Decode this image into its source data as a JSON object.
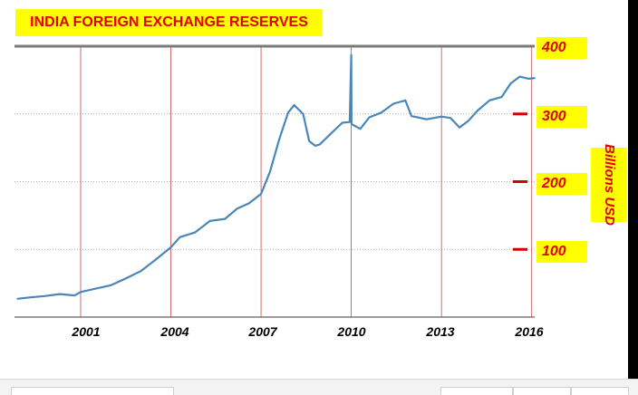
{
  "chart_data": {
    "type": "line",
    "title": "INDIA FOREIGN EXCHANGE RESERVES",
    "ylabel": "Billions USD",
    "yaxis_side": "right",
    "ylim": [
      0,
      400
    ],
    "y_ticks": [
      {
        "label": "400",
        "value": 400
      },
      {
        "label": "300",
        "value": 300
      },
      {
        "label": "200",
        "value": 200
      },
      {
        "label": "100",
        "value": 100
      }
    ],
    "xlim": [
      1998.8,
      2016.1
    ],
    "x_ticks": [
      {
        "label": "2001",
        "value": 2001
      },
      {
        "label": "2004",
        "value": 2004
      },
      {
        "label": "2007",
        "value": 2007
      },
      {
        "label": "2010",
        "value": 2010
      },
      {
        "label": "2013",
        "value": 2013
      },
      {
        "label": "2016",
        "value": 2016
      }
    ],
    "grid": true,
    "series": [
      {
        "color": "#4a86b8",
        "x": [
          1998.9,
          1999.3,
          1999.8,
          2000.3,
          2000.8,
          2001.0,
          2001.5,
          2002.0,
          2002.5,
          2003.0,
          2003.5,
          2004.0,
          2004.3,
          2004.8,
          2005.3,
          2005.8,
          2006.2,
          2006.6,
          2007.0,
          2007.3,
          2007.6,
          2007.9,
          2008.1,
          2008.4,
          2008.6,
          2008.8,
          2008.95,
          2009.3,
          2009.7,
          2009.95,
          2010.0,
          2010.01,
          2010.3,
          2010.6,
          2011.0,
          2011.4,
          2011.8,
          2012.0,
          2012.5,
          2013.0,
          2013.3,
          2013.6,
          2013.9,
          2014.2,
          2014.6,
          2015.0,
          2015.3,
          2015.6,
          2015.9,
          2016.1
        ],
        "y": [
          27,
          29,
          31,
          34,
          32,
          37,
          42,
          47,
          57,
          68,
          85,
          103,
          118,
          125,
          142,
          145,
          160,
          168,
          182,
          215,
          262,
          302,
          313,
          300,
          260,
          253,
          255,
          270,
          287,
          288,
          387,
          285,
          278,
          295,
          302,
          315,
          320,
          297,
          292,
          296,
          294,
          280,
          290,
          305,
          320,
          325,
          345,
          355,
          352,
          353
        ]
      }
    ]
  }
}
